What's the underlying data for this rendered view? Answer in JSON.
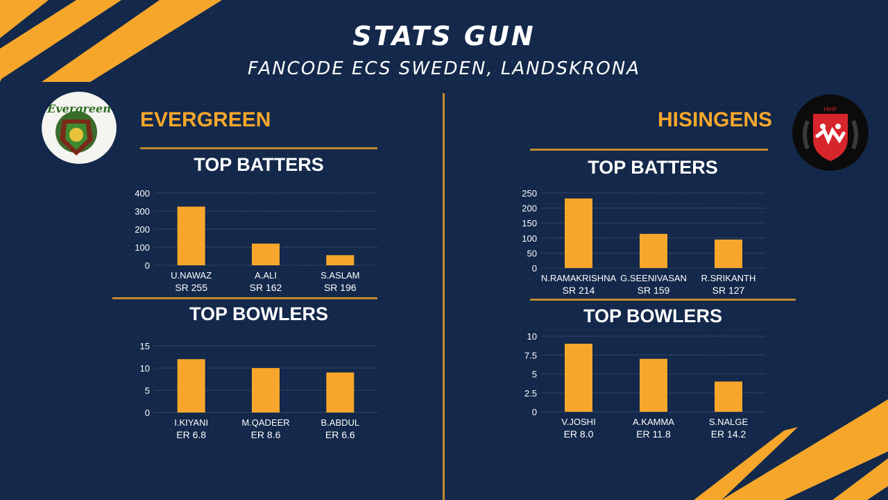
{
  "header": {
    "title": "STATS GUN",
    "subtitle": "FANCODE ECS SWEDEN, LANDSKRONA"
  },
  "colors": {
    "background": "#13284a",
    "accent": "#f6a72b",
    "rule": "#c18a2c"
  },
  "teams": [
    {
      "name": "EVERGREEN",
      "logo": {
        "icon": "evergreen-logo",
        "text": "Evergreen"
      },
      "batters_title": "TOP BATTERS",
      "bowlers_title": "TOP BOWLERS"
    },
    {
      "name": "HISINGENS",
      "logo": {
        "icon": "hisingens-logo",
        "text": "HIHF"
      },
      "batters_title": "TOP BATTERS",
      "bowlers_title": "TOP BOWLERS"
    }
  ],
  "chart_data": [
    {
      "type": "bar",
      "team": "EVERGREEN",
      "kind": "batters",
      "categories": [
        "U.NAWAZ",
        "A.ALI",
        "S.ASLAM"
      ],
      "sublabels": [
        "SR 255",
        "SR 162",
        "SR 196"
      ],
      "values": [
        325,
        120,
        56
      ],
      "ylim": [
        0,
        400
      ],
      "yticks": [
        0,
        100,
        200,
        300,
        400
      ],
      "grid": true
    },
    {
      "type": "bar",
      "team": "EVERGREEN",
      "kind": "bowlers",
      "categories": [
        "I.KIYANI",
        "M.QADEER",
        "B.ABDUL"
      ],
      "sublabels": [
        "ER 6.8",
        "ER 8.6",
        "ER 6.6"
      ],
      "values": [
        12,
        10,
        9
      ],
      "ylim": [
        0,
        15
      ],
      "yticks": [
        0,
        5,
        10,
        15
      ],
      "grid": true
    },
    {
      "type": "bar",
      "team": "HISINGENS",
      "kind": "batters",
      "categories": [
        "N.RAMAKRISHNA",
        "G.SEENIVASAN",
        "R.SRIKANTH"
      ],
      "sublabels": [
        "SR 214",
        "SR 159",
        "SR 127"
      ],
      "values": [
        232,
        114,
        95
      ],
      "ylim": [
        0,
        250
      ],
      "yticks": [
        0,
        50,
        100,
        150,
        200,
        250
      ],
      "grid": true
    },
    {
      "type": "bar",
      "team": "HISINGENS",
      "kind": "bowlers",
      "categories": [
        "V.JOSHI",
        "A.KAMMA",
        "S.NALGE"
      ],
      "sublabels": [
        "ER 8.0",
        "ER 11.8",
        "ER 14.2"
      ],
      "values": [
        9,
        7,
        4
      ],
      "ylim": [
        0,
        10
      ],
      "yticks": [
        "0",
        "2.5",
        "5",
        "7.5",
        "10"
      ],
      "grid": true
    }
  ]
}
